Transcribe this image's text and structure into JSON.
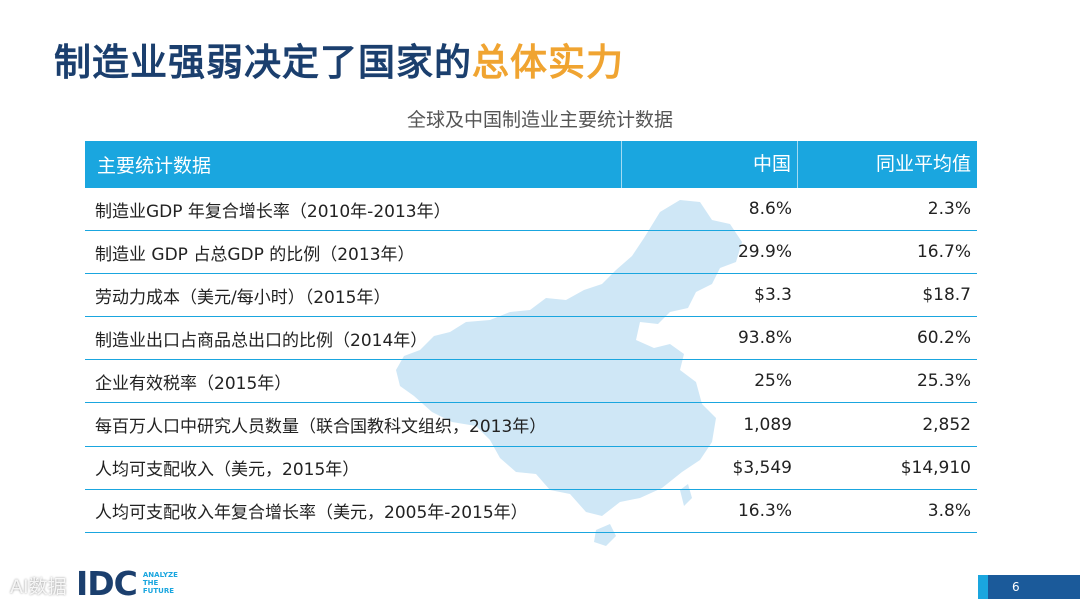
{
  "title": {
    "main": "制造业强弱决定了国家的",
    "accent": "总体实力"
  },
  "subtitle": "全球及中国制造业主要统计数据",
  "table": {
    "headers": [
      "主要统计数据",
      "中国",
      "同业平均值"
    ],
    "rows": [
      {
        "label": "制造业GDP 年复合增长率（2010年-2013年）",
        "china": "8.6%",
        "avg": "2.3%"
      },
      {
        "label": "制造业 GDP 占总GDP 的比例（2013年）",
        "china": "29.9%",
        "avg": "16.7%"
      },
      {
        "label": "劳动力成本（美元/每小时）（2015年）",
        "china": "$3.3",
        "avg": "$18.7"
      },
      {
        "label": "制造业出口占商品总出口的比例（2014年）",
        "china": "93.8%",
        "avg": "60.2%"
      },
      {
        "label": "企业有效税率（2015年）",
        "china": "25%",
        "avg": "25.3%"
      },
      {
        "label": "每百万人口中研究人员数量（联合国教科文组织，2013年）",
        "china": "1,089",
        "avg": "2,852"
      },
      {
        "label": "人均可支配收入（美元，2015年）",
        "china": "$3,549",
        "avg": "$14,910"
      },
      {
        "label": "人均可支配收入年复合增长率（美元，2005年-2015年）",
        "china": "16.3%",
        "avg": "3.8%"
      }
    ]
  },
  "footer": {
    "logo": "IDC",
    "tagline": [
      "ANALYZE",
      "THE",
      "FUTURE"
    ],
    "watermark": "AI数据",
    "page": "6"
  },
  "colors": {
    "title": "#1b3f6e",
    "accent": "#f0a431",
    "header_bg": "#1aa6df",
    "map": "#cfe7f6"
  }
}
